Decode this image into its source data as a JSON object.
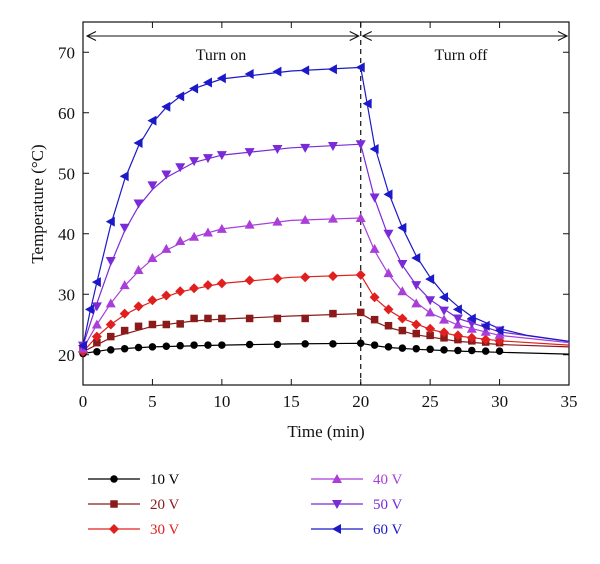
{
  "chart_data": {
    "type": "line",
    "title": "",
    "xlabel": "Time (min)",
    "ylabel": "Temperature (°C)",
    "xlim": [
      0,
      35
    ],
    "ylim": [
      15,
      75
    ],
    "x_ticks": [
      0,
      5,
      10,
      15,
      20,
      25,
      30,
      35
    ],
    "y_ticks": [
      20,
      30,
      40,
      50,
      60,
      70
    ],
    "grid": false,
    "legend_position": "bottom",
    "annotations": {
      "turn_on": "Turn on",
      "turn_off": "Turn off",
      "switch_time": 20
    },
    "series": [
      {
        "name": "10 V",
        "color": "#000000",
        "marker": "circle",
        "marker_points": [
          [
            0,
            20.2
          ],
          [
            1,
            20.5
          ],
          [
            2,
            20.8
          ],
          [
            3,
            21.0
          ],
          [
            4,
            21.2
          ],
          [
            5,
            21.3
          ],
          [
            6,
            21.4
          ],
          [
            7,
            21.5
          ],
          [
            8,
            21.6
          ],
          [
            9,
            21.6
          ],
          [
            10,
            21.6
          ],
          [
            12,
            21.7
          ],
          [
            14,
            21.7
          ],
          [
            16,
            21.8
          ],
          [
            18,
            21.8
          ],
          [
            20,
            21.9
          ],
          [
            21,
            21.6
          ],
          [
            22,
            21.3
          ],
          [
            23,
            21.1
          ],
          [
            24,
            21.0
          ],
          [
            25,
            20.9
          ],
          [
            26,
            20.8
          ],
          [
            27,
            20.7
          ],
          [
            28,
            20.7
          ],
          [
            29,
            20.6
          ],
          [
            30,
            20.6
          ]
        ],
        "fit_curve": [
          [
            0,
            20.2
          ],
          [
            2,
            20.9
          ],
          [
            5,
            21.3
          ],
          [
            10,
            21.6
          ],
          [
            15,
            21.8
          ],
          [
            20,
            21.9
          ],
          [
            21,
            21.5
          ],
          [
            22,
            21.2
          ],
          [
            24,
            20.9
          ],
          [
            27,
            20.6
          ],
          [
            30,
            20.4
          ],
          [
            35,
            20.1
          ]
        ]
      },
      {
        "name": "20 V",
        "color": "#8b1a1a",
        "marker": "square",
        "marker_points": [
          [
            0,
            21.0
          ],
          [
            1,
            22.0
          ],
          [
            2,
            23.0
          ],
          [
            3,
            24.0
          ],
          [
            4,
            24.7
          ],
          [
            5,
            25.0
          ],
          [
            6,
            25.0
          ],
          [
            7,
            25.1
          ],
          [
            8,
            26.0
          ],
          [
            9,
            26.0
          ],
          [
            10,
            26.0
          ],
          [
            12,
            26.0
          ],
          [
            14,
            26.0
          ],
          [
            16,
            26.0
          ],
          [
            18,
            26.8
          ],
          [
            20,
            27.0
          ],
          [
            21,
            25.8
          ],
          [
            22,
            24.8
          ],
          [
            23,
            24.0
          ],
          [
            24,
            23.5
          ],
          [
            25,
            23.2
          ],
          [
            26,
            22.8
          ],
          [
            27,
            22.5
          ],
          [
            28,
            22.3
          ],
          [
            29,
            22.1
          ],
          [
            30,
            22.0
          ]
        ],
        "fit_curve": [
          [
            0,
            20.5
          ],
          [
            2,
            22.8
          ],
          [
            5,
            24.7
          ],
          [
            8,
            25.6
          ],
          [
            10,
            25.9
          ],
          [
            15,
            26.4
          ],
          [
            20,
            26.8
          ],
          [
            21,
            25.5
          ],
          [
            22,
            24.5
          ],
          [
            24,
            23.3
          ],
          [
            27,
            22.2
          ],
          [
            30,
            21.7
          ],
          [
            35,
            21.3
          ]
        ]
      },
      {
        "name": "30 V",
        "color": "#e0201e",
        "marker": "diamond",
        "marker_points": [
          [
            0,
            20.5
          ],
          [
            1,
            23.0
          ],
          [
            2,
            25.0
          ],
          [
            3,
            26.8
          ],
          [
            4,
            28.0
          ],
          [
            5,
            29.0
          ],
          [
            6,
            29.8
          ],
          [
            7,
            30.5
          ],
          [
            8,
            31.0
          ],
          [
            9,
            31.5
          ],
          [
            10,
            31.8
          ],
          [
            12,
            32.3
          ],
          [
            14,
            32.6
          ],
          [
            16,
            32.8
          ],
          [
            18,
            33.0
          ],
          [
            20,
            33.2
          ],
          [
            21,
            29.5
          ],
          [
            22,
            27.5
          ],
          [
            23,
            26.0
          ],
          [
            24,
            25.0
          ],
          [
            25,
            24.3
          ],
          [
            26,
            23.7
          ],
          [
            27,
            23.2
          ],
          [
            28,
            22.8
          ],
          [
            29,
            22.5
          ],
          [
            30,
            22.3
          ]
        ],
        "fit_curve": [
          [
            0,
            20.5
          ],
          [
            1,
            23.0
          ],
          [
            2,
            25.0
          ],
          [
            3,
            26.6
          ],
          [
            4,
            27.8
          ],
          [
            5,
            28.8
          ],
          [
            7,
            30.4
          ],
          [
            10,
            31.8
          ],
          [
            15,
            32.8
          ],
          [
            20,
            33.2
          ],
          [
            21,
            29.4
          ],
          [
            22,
            27.4
          ],
          [
            23,
            26.0
          ],
          [
            25,
            24.2
          ],
          [
            27,
            23.1
          ],
          [
            30,
            22.3
          ],
          [
            35,
            21.6
          ]
        ]
      },
      {
        "name": "40 V",
        "color": "#a93fd8",
        "marker": "triangle-up",
        "marker_points": [
          [
            0,
            21.0
          ],
          [
            1,
            25.0
          ],
          [
            2,
            28.5
          ],
          [
            3,
            31.5
          ],
          [
            4,
            34.0
          ],
          [
            5,
            36.0
          ],
          [
            6,
            37.5
          ],
          [
            7,
            38.8
          ],
          [
            8,
            39.5
          ],
          [
            9,
            40.2
          ],
          [
            10,
            40.8
          ],
          [
            12,
            41.5
          ],
          [
            14,
            42.0
          ],
          [
            16,
            42.3
          ],
          [
            18,
            42.5
          ],
          [
            20,
            42.6
          ],
          [
            21,
            37.5
          ],
          [
            22,
            33.5
          ],
          [
            23,
            30.5
          ],
          [
            24,
            28.5
          ],
          [
            25,
            27.0
          ],
          [
            26,
            25.8
          ],
          [
            27,
            25.0
          ],
          [
            28,
            24.3
          ],
          [
            29,
            23.8
          ],
          [
            30,
            23.3
          ]
        ],
        "fit_curve": [
          [
            0,
            21.0
          ],
          [
            1,
            25.0
          ],
          [
            2,
            28.5
          ],
          [
            3,
            31.4
          ],
          [
            4,
            33.8
          ],
          [
            5,
            35.8
          ],
          [
            6,
            37.3
          ],
          [
            8,
            39.5
          ],
          [
            10,
            40.8
          ],
          [
            15,
            42.2
          ],
          [
            20,
            42.6
          ],
          [
            21,
            37.2
          ],
          [
            22,
            33.3
          ],
          [
            23,
            30.4
          ],
          [
            25,
            26.9
          ],
          [
            27,
            24.9
          ],
          [
            30,
            23.2
          ],
          [
            35,
            22.0
          ]
        ]
      },
      {
        "name": "50 V",
        "color": "#7a2ad6",
        "marker": "triangle-down",
        "marker_points": [
          [
            0,
            21.5
          ],
          [
            1,
            28.0
          ],
          [
            2,
            35.5
          ],
          [
            3,
            41.0
          ],
          [
            4,
            45.0
          ],
          [
            5,
            48.0
          ],
          [
            6,
            49.8
          ],
          [
            7,
            51.0
          ],
          [
            8,
            52.0
          ],
          [
            9,
            52.5
          ],
          [
            10,
            53.0
          ],
          [
            12,
            53.5
          ],
          [
            14,
            54.0
          ],
          [
            16,
            54.2
          ],
          [
            18,
            54.5
          ],
          [
            20,
            54.8
          ],
          [
            21,
            46.0
          ],
          [
            22,
            40.0
          ],
          [
            23,
            35.0
          ],
          [
            24,
            31.5
          ],
          [
            25,
            29.0
          ],
          [
            26,
            27.3
          ],
          [
            27,
            26.0
          ],
          [
            28,
            25.2
          ],
          [
            29,
            24.5
          ],
          [
            30,
            24.0
          ]
        ],
        "fit_curve": [
          [
            0,
            21.5
          ],
          [
            1,
            28.5
          ],
          [
            2,
            35.0
          ],
          [
            3,
            40.5
          ],
          [
            4,
            44.5
          ],
          [
            5,
            47.3
          ],
          [
            6,
            49.3
          ],
          [
            8,
            51.8
          ],
          [
            10,
            53.0
          ],
          [
            15,
            54.2
          ],
          [
            20,
            54.8
          ],
          [
            21,
            45.8
          ],
          [
            22,
            39.5
          ],
          [
            23,
            34.8
          ],
          [
            24,
            31.5
          ],
          [
            25,
            29.1
          ],
          [
            27,
            26.0
          ],
          [
            30,
            23.8
          ],
          [
            35,
            22.2
          ]
        ]
      },
      {
        "name": "60 V",
        "color": "#1c19c8",
        "marker": "triangle-left",
        "marker_points": [
          [
            0,
            21.5
          ],
          [
            0.5,
            27.5
          ],
          [
            1,
            32.0
          ],
          [
            2,
            42.0
          ],
          [
            3,
            49.5
          ],
          [
            4,
            55.0
          ],
          [
            5,
            58.7
          ],
          [
            6,
            61.0
          ],
          [
            7,
            62.7
          ],
          [
            8,
            64.0
          ],
          [
            9,
            65.0
          ],
          [
            10,
            65.7
          ],
          [
            12,
            66.4
          ],
          [
            14,
            66.8
          ],
          [
            16,
            67.0
          ],
          [
            18,
            67.2
          ],
          [
            20,
            67.5
          ],
          [
            20.5,
            61.5
          ],
          [
            21,
            54.0
          ],
          [
            22,
            46.5
          ],
          [
            23,
            41.0
          ],
          [
            24,
            36.0
          ],
          [
            25,
            32.5
          ],
          [
            26,
            29.5
          ],
          [
            27,
            27.5
          ],
          [
            28,
            26.0
          ],
          [
            29,
            24.8
          ],
          [
            30,
            24.0
          ]
        ],
        "fit_curve": [
          [
            0,
            21.5
          ],
          [
            0.5,
            27.0
          ],
          [
            1,
            32.0
          ],
          [
            2,
            41.5
          ],
          [
            3,
            49.0
          ],
          [
            4,
            54.5
          ],
          [
            5,
            58.3
          ],
          [
            6,
            60.9
          ],
          [
            7,
            62.7
          ],
          [
            8,
            64.0
          ],
          [
            10,
            65.6
          ],
          [
            15,
            66.9
          ],
          [
            20,
            67.5
          ],
          [
            20.5,
            61.0
          ],
          [
            21,
            54.5
          ],
          [
            22,
            46.8
          ],
          [
            23,
            41.0
          ],
          [
            24,
            36.3
          ],
          [
            25,
            32.8
          ],
          [
            26,
            30.0
          ],
          [
            27,
            28.0
          ],
          [
            28,
            26.3
          ],
          [
            30,
            24.3
          ],
          [
            32,
            23.2
          ],
          [
            35,
            22.2
          ]
        ]
      }
    ]
  }
}
